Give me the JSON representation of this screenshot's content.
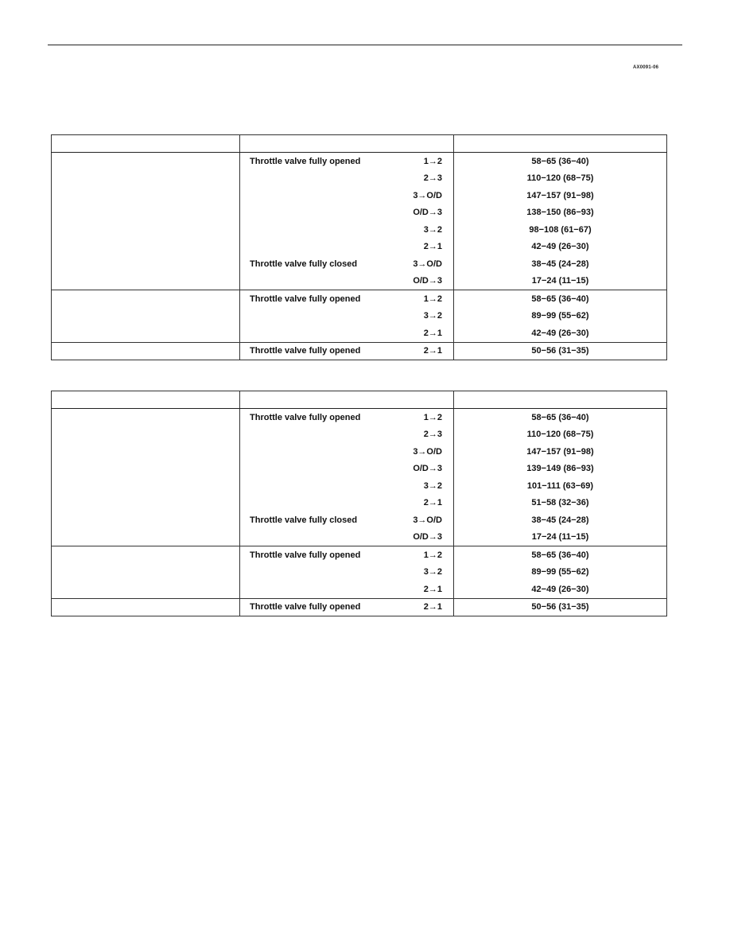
{
  "page_code": "AX0091-06",
  "tables": [
    {
      "groups": [
        {
          "rows": [
            {
              "condition": "Throttle valve fully opened",
              "shift": "1→2",
              "value": "58−65 (36−40)"
            },
            {
              "condition": "",
              "shift": "2→3",
              "value": "110−120 (68−75)"
            },
            {
              "condition": "",
              "shift": "3→O/D",
              "value": "147−157 (91−98)"
            },
            {
              "condition": "",
              "shift": "O/D→3",
              "value": "138−150 (86−93)"
            },
            {
              "condition": "",
              "shift": "3→2",
              "value": "98−108 (61−67)"
            },
            {
              "condition": "",
              "shift": "2→1",
              "value": "42−49 (26−30)"
            },
            {
              "condition": "Throttle valve fully closed",
              "shift": "3→O/D",
              "value": "38−45 (24−28)"
            },
            {
              "condition": "",
              "shift": "O/D→3",
              "value": "17−24 (11−15)"
            }
          ]
        },
        {
          "rows": [
            {
              "condition": "Throttle valve fully opened",
              "shift": "1→2",
              "value": "58−65 (36−40)"
            },
            {
              "condition": "",
              "shift": "3→2",
              "value": "89−99 (55−62)"
            },
            {
              "condition": "",
              "shift": "2→1",
              "value": "42−49 (26−30)"
            }
          ]
        },
        {
          "rows": [
            {
              "condition": "Throttle valve fully opened",
              "shift": "2→1",
              "value": "50−56 (31−35)"
            }
          ]
        }
      ]
    },
    {
      "groups": [
        {
          "rows": [
            {
              "condition": "Throttle valve fully opened",
              "shift": "1→2",
              "value": "58−65 (36−40)"
            },
            {
              "condition": "",
              "shift": "2→3",
              "value": "110−120 (68−75)"
            },
            {
              "condition": "",
              "shift": "3→O/D",
              "value": "147−157 (91−98)"
            },
            {
              "condition": "",
              "shift": "O/D→3",
              "value": "139−149 (86−93)"
            },
            {
              "condition": "",
              "shift": "3→2",
              "value": "101−111 (63−69)"
            },
            {
              "condition": "",
              "shift": "2→1",
              "value": "51−58 (32−36)"
            },
            {
              "condition": "Throttle valve fully closed",
              "shift": "3→O/D",
              "value": "38−45 (24−28)"
            },
            {
              "condition": "",
              "shift": "O/D→3",
              "value": "17−24 (11−15)"
            }
          ]
        },
        {
          "rows": [
            {
              "condition": "Throttle valve fully opened",
              "shift": "1→2",
              "value": "58−65 (36−40)"
            },
            {
              "condition": "",
              "shift": "3→2",
              "value": "89−99 (55−62)"
            },
            {
              "condition": "",
              "shift": "2→1",
              "value": "42−49 (26−30)"
            }
          ]
        },
        {
          "rows": [
            {
              "condition": "Throttle valve fully opened",
              "shift": "2→1",
              "value": "50−56 (31−35)"
            }
          ]
        }
      ]
    }
  ]
}
